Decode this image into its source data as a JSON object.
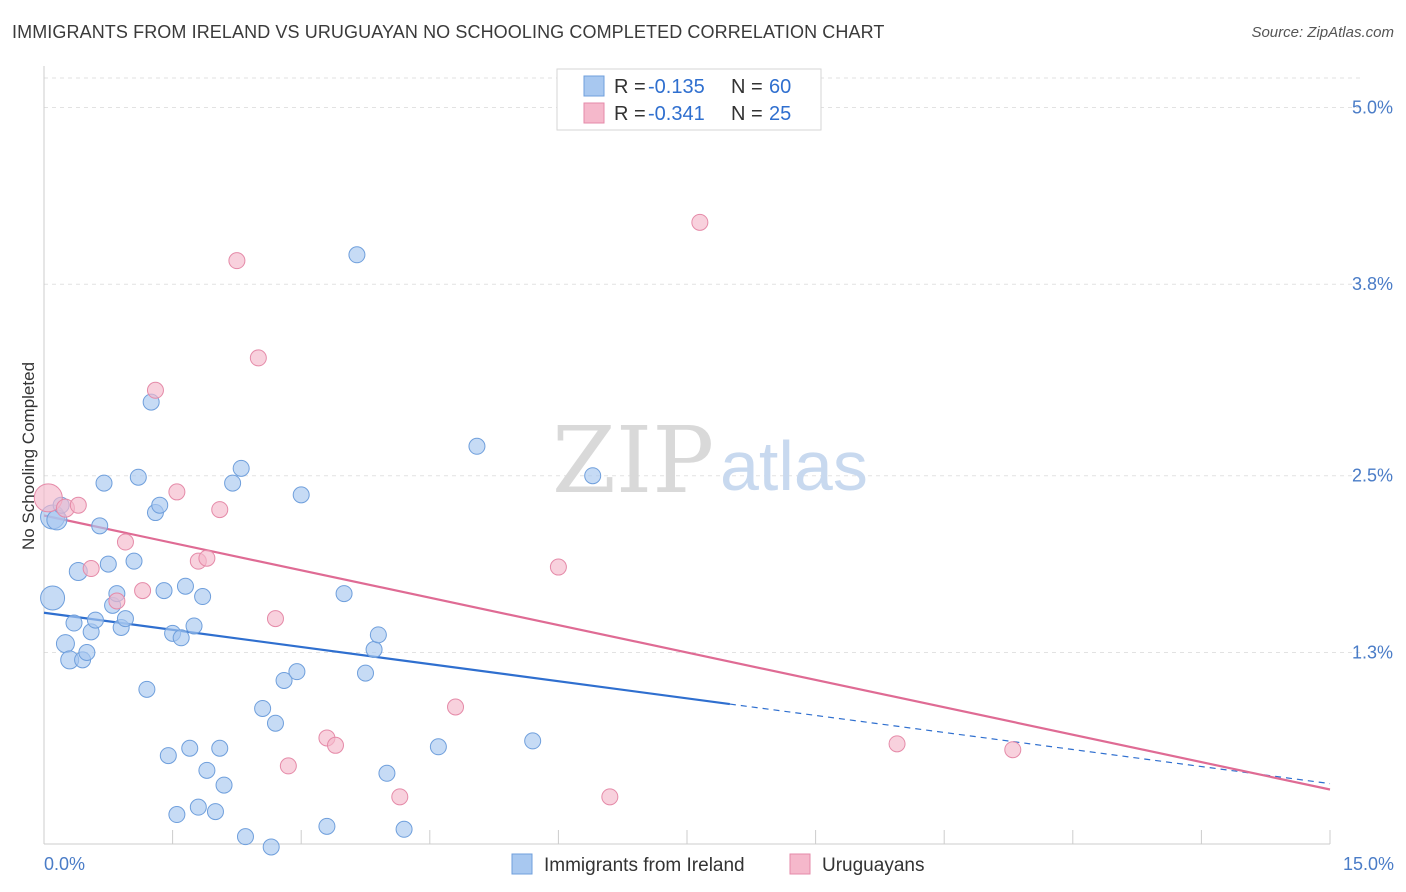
{
  "header": {
    "title": "IMMIGRANTS FROM IRELAND VS URUGUAYAN NO SCHOOLING COMPLETED CORRELATION CHART",
    "source": "Source: ZipAtlas.com"
  },
  "watermark": {
    "zip": "ZIP",
    "atlas": "atlas"
  },
  "chart_data": {
    "type": "scatter",
    "title": "IMMIGRANTS FROM IRELAND VS URUGUAYAN NO SCHOOLING COMPLETED CORRELATION CHART",
    "xlabel": "",
    "ylabel": "No Schooling Completed",
    "xlim": [
      0,
      15
    ],
    "ylim": [
      0,
      5.2
    ],
    "x_tick_labels": [
      {
        "value": 0,
        "label": "0.0%"
      },
      {
        "value": 15,
        "label": "15.0%"
      }
    ],
    "y_tick_labels": [
      {
        "value": 1.3,
        "label": "1.3%"
      },
      {
        "value": 2.5,
        "label": "2.5%"
      },
      {
        "value": 3.8,
        "label": "3.8%"
      },
      {
        "value": 5.0,
        "label": "5.0%"
      }
    ],
    "grid": true,
    "legend_placement": "top-center",
    "legend_stats": [
      {
        "r_label": "R =",
        "r_value": "-0.135",
        "n_label": "N =",
        "n_value": "60",
        "color": "#a8c8f0"
      },
      {
        "r_label": "R =",
        "r_value": "-0.341",
        "n_label": "N =",
        "n_value": "25",
        "color": "#f5b8cb"
      }
    ],
    "series": [
      {
        "name": "Immigrants from Ireland",
        "color": "#a8c8f0",
        "stroke": "#6f9fdc",
        "line_color": "#2f6fcf",
        "trend": {
          "x1": 0,
          "y1": 1.57,
          "x2": 8.0,
          "y2": 0.95,
          "dash_to_x": 15,
          "dash_to_y": 0.41
        },
        "points": [
          [
            0.1,
            2.22,
            12
          ],
          [
            0.1,
            1.67,
            12
          ],
          [
            0.15,
            2.2,
            10
          ],
          [
            0.25,
            1.36,
            9
          ],
          [
            0.3,
            1.25,
            9
          ],
          [
            0.35,
            1.5,
            8
          ],
          [
            0.4,
            1.85,
            9
          ],
          [
            0.45,
            1.25,
            8
          ],
          [
            0.5,
            1.3,
            8
          ],
          [
            0.55,
            1.44,
            8
          ],
          [
            0.6,
            1.52,
            8
          ],
          [
            0.65,
            2.16,
            8
          ],
          [
            0.7,
            2.45,
            8
          ],
          [
            0.75,
            1.9,
            8
          ],
          [
            0.8,
            1.62,
            8
          ],
          [
            0.85,
            1.7,
            8
          ],
          [
            0.9,
            1.47,
            8
          ],
          [
            0.95,
            1.53,
            8
          ],
          [
            1.05,
            1.92,
            8
          ],
          [
            1.1,
            2.49,
            8
          ],
          [
            1.2,
            1.05,
            8
          ],
          [
            1.25,
            3.0,
            8
          ],
          [
            1.3,
            2.25,
            8
          ],
          [
            1.35,
            2.3,
            8
          ],
          [
            1.4,
            1.72,
            8
          ],
          [
            1.45,
            0.6,
            8
          ],
          [
            1.5,
            1.43,
            8
          ],
          [
            1.55,
            0.2,
            8
          ],
          [
            1.6,
            1.4,
            8
          ],
          [
            1.65,
            1.75,
            8
          ],
          [
            1.7,
            0.65,
            8
          ],
          [
            1.75,
            1.48,
            8
          ],
          [
            1.8,
            0.25,
            8
          ],
          [
            1.85,
            1.68,
            8
          ],
          [
            1.9,
            0.5,
            8
          ],
          [
            2.0,
            0.22,
            8
          ],
          [
            2.05,
            0.65,
            8
          ],
          [
            2.1,
            0.4,
            8
          ],
          [
            2.2,
            2.45,
            8
          ],
          [
            2.3,
            2.55,
            8
          ],
          [
            2.35,
            0.05,
            8
          ],
          [
            2.55,
            0.92,
            8
          ],
          [
            2.65,
            -0.02,
            8
          ],
          [
            2.7,
            0.82,
            8
          ],
          [
            2.8,
            1.11,
            8
          ],
          [
            2.95,
            1.17,
            8
          ],
          [
            3.0,
            2.37,
            8
          ],
          [
            3.3,
            0.12,
            8
          ],
          [
            3.5,
            1.7,
            8
          ],
          [
            3.75,
            1.16,
            8
          ],
          [
            3.85,
            1.32,
            8
          ],
          [
            3.9,
            1.42,
            8
          ],
          [
            3.65,
            4.0,
            8
          ],
          [
            4.0,
            0.48,
            8
          ],
          [
            4.2,
            0.1,
            8
          ],
          [
            4.6,
            0.66,
            8
          ],
          [
            5.05,
            2.7,
            8
          ],
          [
            5.7,
            0.7,
            8
          ],
          [
            6.4,
            2.5,
            8
          ],
          [
            0.2,
            2.3,
            8
          ]
        ]
      },
      {
        "name": "Uruguayans",
        "color": "#f5b8cb",
        "stroke": "#e58aa8",
        "line_color": "#df6b94",
        "trend": {
          "x1": 0,
          "y1": 2.23,
          "x2": 15,
          "y2": 0.37
        },
        "points": [
          [
            0.05,
            2.35,
            14
          ],
          [
            0.25,
            2.28,
            9
          ],
          [
            0.4,
            2.3,
            8
          ],
          [
            0.55,
            1.87,
            8
          ],
          [
            0.85,
            1.65,
            8
          ],
          [
            0.95,
            2.05,
            8
          ],
          [
            1.15,
            1.72,
            8
          ],
          [
            1.3,
            3.08,
            8
          ],
          [
            1.55,
            2.39,
            8
          ],
          [
            1.8,
            1.92,
            8
          ],
          [
            1.9,
            1.94,
            8
          ],
          [
            2.05,
            2.27,
            8
          ],
          [
            2.25,
            3.96,
            8
          ],
          [
            2.5,
            3.3,
            8
          ],
          [
            2.7,
            1.53,
            8
          ],
          [
            2.85,
            0.53,
            8
          ],
          [
            3.3,
            0.72,
            8
          ],
          [
            3.4,
            0.67,
            8
          ],
          [
            4.15,
            0.32,
            8
          ],
          [
            4.8,
            0.93,
            8
          ],
          [
            6.0,
            1.88,
            8
          ],
          [
            6.6,
            0.32,
            8
          ],
          [
            7.65,
            4.22,
            8
          ],
          [
            9.95,
            0.68,
            8
          ],
          [
            11.3,
            0.64,
            8
          ]
        ]
      }
    ]
  }
}
